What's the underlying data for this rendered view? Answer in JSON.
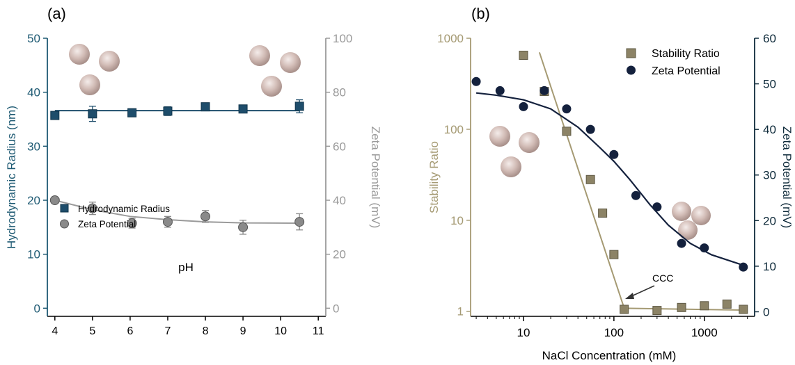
{
  "chart_data": [
    {
      "panel_label": "(a)",
      "type": "scatter",
      "xlabel": "pH",
      "xlim": [
        3.8,
        11.2
      ],
      "xticks": [
        4,
        5,
        6,
        7,
        8,
        9,
        10,
        11
      ],
      "ylabel_left": "Hydrodynamic Radius (nm)",
      "ylim_left": [
        -1.5,
        50
      ],
      "yticks_left": [
        0,
        10,
        20,
        30,
        40,
        50
      ],
      "ylabel_right": "Zeta Potential (mV)",
      "ylim_right": [
        -3,
        100
      ],
      "yticks_right": [
        0,
        20,
        40,
        60,
        80,
        100
      ],
      "legend_placement": "bottom-left",
      "grid": false,
      "series": [
        {
          "name": "Hydrodynamic Radius",
          "axis": "left",
          "marker": "square",
          "color": "#1e4d6b",
          "x": [
            4,
            5,
            6.05,
            7,
            8,
            9,
            10.5
          ],
          "y": [
            35.7,
            36,
            36.2,
            36.5,
            37.3,
            36.9,
            37.4
          ],
          "error": [
            0.3,
            1.4,
            0.4,
            0.8,
            0.3,
            0.5,
            1.2
          ],
          "fit_y": 36.6
        },
        {
          "name": "Zeta Potential",
          "axis": "right",
          "marker": "circle",
          "color": "#8a8a8a",
          "x": [
            4,
            5,
            6.05,
            7,
            8,
            9,
            10.5
          ],
          "y": [
            40,
            37,
            31.5,
            32,
            34,
            30,
            32
          ],
          "error": [
            0.5,
            2.3,
            1.8,
            2,
            2.2,
            2.6,
            3
          ],
          "fit": [
            [
              4,
              40
            ],
            [
              5,
              36.5
            ],
            [
              6,
              34
            ],
            [
              7,
              32.8
            ],
            [
              8,
              32
            ],
            [
              9,
              31.6
            ],
            [
              10.5,
              31.5
            ]
          ]
        }
      ],
      "colors": {
        "left_axis": "#1e5a73",
        "right_axis": "#9a9a9a"
      }
    },
    {
      "panel_label": "(b)",
      "type": "scatter",
      "xlabel": "NaCl Concentration (mM)",
      "xscale": "log",
      "xlim": [
        2.6,
        3600
      ],
      "xticks": [
        10,
        100,
        1000
      ],
      "ylabel_left": "Stability Ratio",
      "yscale_left": "log",
      "ylim_left": [
        0.88,
        1000
      ],
      "yticks_left": [
        1,
        10,
        100,
        1000
      ],
      "ylabel_right": "Zeta Potential (mV)",
      "ylim_right": [
        -1,
        60
      ],
      "yticks_right": [
        0,
        10,
        20,
        30,
        40,
        50,
        60
      ],
      "legend_placement": "top-right",
      "grid": false,
      "annotation": "CCC",
      "series": [
        {
          "name": "Stability Ratio",
          "axis": "left",
          "marker": "square",
          "color": "#8c8366",
          "x": [
            10,
            17,
            30,
            55,
            75,
            100,
            130,
            300,
            560,
            1000,
            1780,
            2700
          ],
          "y": [
            650,
            260,
            95,
            28,
            12,
            4.2,
            1.05,
            1.02,
            1.1,
            1.15,
            1.2,
            1.05
          ],
          "fit_lines": [
            [
              [
                15,
                700
              ],
              [
                130,
                1.08
              ]
            ],
            [
              [
                130,
                1.08
              ],
              [
                2700,
                1.03
              ]
            ]
          ]
        },
        {
          "name": "Zeta Potential",
          "axis": "right",
          "marker": "circle",
          "color": "#14213d",
          "x": [
            3,
            5.5,
            10,
            17,
            30,
            55,
            100,
            175,
            300,
            560,
            1000,
            2700
          ],
          "y": [
            50.5,
            48.5,
            45,
            48.5,
            44.5,
            40,
            34.5,
            25.5,
            23,
            15,
            14,
            9.8
          ],
          "fit": [
            [
              3,
              48
            ],
            [
              5,
              47.5
            ],
            [
              10,
              46.5
            ],
            [
              20,
              44.5
            ],
            [
              40,
              40.5
            ],
            [
              70,
              36
            ],
            [
              100,
              33
            ],
            [
              150,
              29
            ],
            [
              250,
              23.5
            ],
            [
              400,
              19
            ],
            [
              700,
              15
            ],
            [
              1200,
              12.5
            ],
            [
              2700,
              10.2
            ]
          ]
        }
      ],
      "colors": {
        "left_axis": "#a59a73",
        "right_axis": "#0e2a3a"
      }
    }
  ]
}
